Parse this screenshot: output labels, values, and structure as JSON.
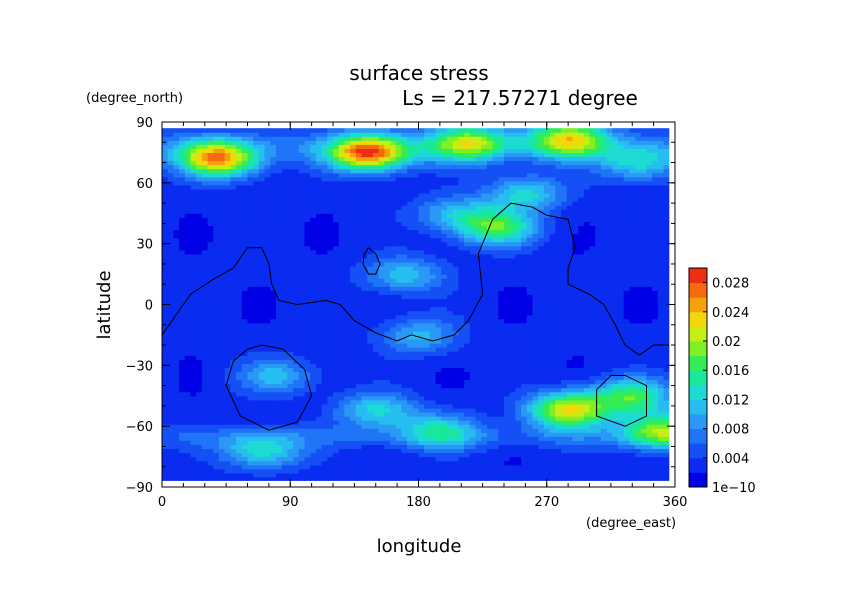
{
  "chart_data": {
    "type": "heatmap",
    "title": "surface stress",
    "subtitle": "Ls = 217.57271 degree",
    "xlabel": "longitude",
    "ylabel": "latitude",
    "x_unit": "(degree_east)",
    "y_unit": "(degree_north)",
    "xlim": [
      0,
      360
    ],
    "ylim": [
      -90,
      90
    ],
    "x_ticks": [
      0,
      90,
      180,
      270,
      360
    ],
    "y_ticks": [
      -90,
      -60,
      -30,
      0,
      30,
      60,
      90
    ],
    "x_tick_labels": [
      "0",
      "90",
      "180",
      "270",
      "360"
    ],
    "y_tick_labels": [
      "−90",
      "−60",
      "−30",
      "0",
      "30",
      "60",
      "90"
    ],
    "colorbar": {
      "min": 0,
      "max": 0.03,
      "tick_labels": [
        "1e−10",
        "0.004",
        "0.008",
        "0.012",
        "0.016",
        "0.02",
        "0.024",
        "0.028"
      ],
      "tick_values": [
        0,
        0.004,
        0.008,
        0.012,
        0.016,
        0.02,
        0.024,
        0.028
      ],
      "levels": 15,
      "colors": [
        "#0000e6",
        "#0a2bf0",
        "#1450f5",
        "#1f74f7",
        "#2a98f5",
        "#26bdf0",
        "#1ddbd2",
        "#18e89a",
        "#36ec55",
        "#7ff025",
        "#c5ee14",
        "#f2d80b",
        "#f6a00c",
        "#f66a0f",
        "#ee2e12"
      ]
    },
    "grid": false,
    "data_extent": {
      "lon": [
        0,
        356
      ],
      "lat": [
        -87,
        87
      ]
    },
    "field": {
      "description_values": "regional maxima of surface stress (field value, N/m2 units not printed)",
      "features": [
        {
          "lon": 40,
          "lat": 72,
          "value": 0.022
        },
        {
          "lon": 145,
          "lat": 75,
          "value": 0.024
        },
        {
          "lon": 215,
          "lat": 80,
          "value": 0.016
        },
        {
          "lon": 285,
          "lat": 82,
          "value": 0.018
        },
        {
          "lon": 335,
          "lat": 70,
          "value": 0.01
        },
        {
          "lon": 255,
          "lat": 55,
          "value": 0.01
        },
        {
          "lon": 235,
          "lat": 38,
          "value": 0.014
        },
        {
          "lon": 205,
          "lat": 45,
          "value": 0.008
        },
        {
          "lon": 170,
          "lat": 15,
          "value": 0.009
        },
        {
          "lon": 180,
          "lat": -15,
          "value": 0.008
        },
        {
          "lon": 80,
          "lat": -35,
          "value": 0.008
        },
        {
          "lon": 70,
          "lat": -72,
          "value": 0.011
        },
        {
          "lon": 150,
          "lat": -52,
          "value": 0.01
        },
        {
          "lon": 195,
          "lat": -62,
          "value": 0.01
        },
        {
          "lon": 285,
          "lat": -52,
          "value": 0.02
        },
        {
          "lon": 330,
          "lat": -45,
          "value": 0.014
        },
        {
          "lon": 350,
          "lat": -62,
          "value": 0.016
        }
      ]
    },
    "contour_outline": {
      "continent_like": [
        [
          0,
          -15
        ],
        [
          10,
          -5
        ],
        [
          20,
          5
        ],
        [
          35,
          12
        ],
        [
          50,
          18
        ],
        [
          60,
          28
        ],
        [
          70,
          28
        ],
        [
          75,
          20
        ],
        [
          77,
          10
        ],
        [
          82,
          2
        ],
        [
          95,
          0
        ],
        [
          115,
          2
        ],
        [
          125,
          0
        ],
        [
          135,
          -8
        ],
        [
          150,
          -14
        ],
        [
          165,
          -18
        ],
        [
          175,
          -15
        ],
        [
          190,
          -18
        ],
        [
          205,
          -15
        ],
        [
          215,
          -8
        ],
        [
          225,
          5
        ],
        [
          222,
          25
        ],
        [
          232,
          42
        ],
        [
          245,
          50
        ],
        [
          260,
          48
        ],
        [
          270,
          44
        ],
        [
          285,
          42
        ],
        [
          290,
          28
        ],
        [
          285,
          18
        ],
        [
          285,
          10
        ],
        [
          300,
          5
        ],
        [
          310,
          0
        ],
        [
          318,
          -10
        ],
        [
          325,
          -20
        ],
        [
          335,
          -25
        ],
        [
          345,
          -20
        ],
        [
          356,
          -20
        ]
      ],
      "island": [
        [
          145,
          28
        ],
        [
          150,
          25
        ],
        [
          153,
          20
        ],
        [
          150,
          15
        ],
        [
          145,
          15
        ],
        [
          141,
          20
        ],
        [
          142,
          25
        ],
        [
          145,
          28
        ]
      ],
      "south_ring_1": [
        [
          70,
          -20
        ],
        [
          85,
          -22
        ],
        [
          100,
          -32
        ],
        [
          105,
          -45
        ],
        [
          95,
          -58
        ],
        [
          75,
          -62
        ],
        [
          55,
          -55
        ],
        [
          45,
          -40
        ],
        [
          50,
          -28
        ],
        [
          60,
          -22
        ],
        [
          70,
          -20
        ]
      ],
      "south_ring_2": [
        [
          325,
          -35
        ],
        [
          340,
          -40
        ],
        [
          340,
          -55
        ],
        [
          325,
          -60
        ],
        [
          305,
          -55
        ],
        [
          305,
          -42
        ],
        [
          315,
          -35
        ],
        [
          325,
          -35
        ]
      ]
    }
  }
}
